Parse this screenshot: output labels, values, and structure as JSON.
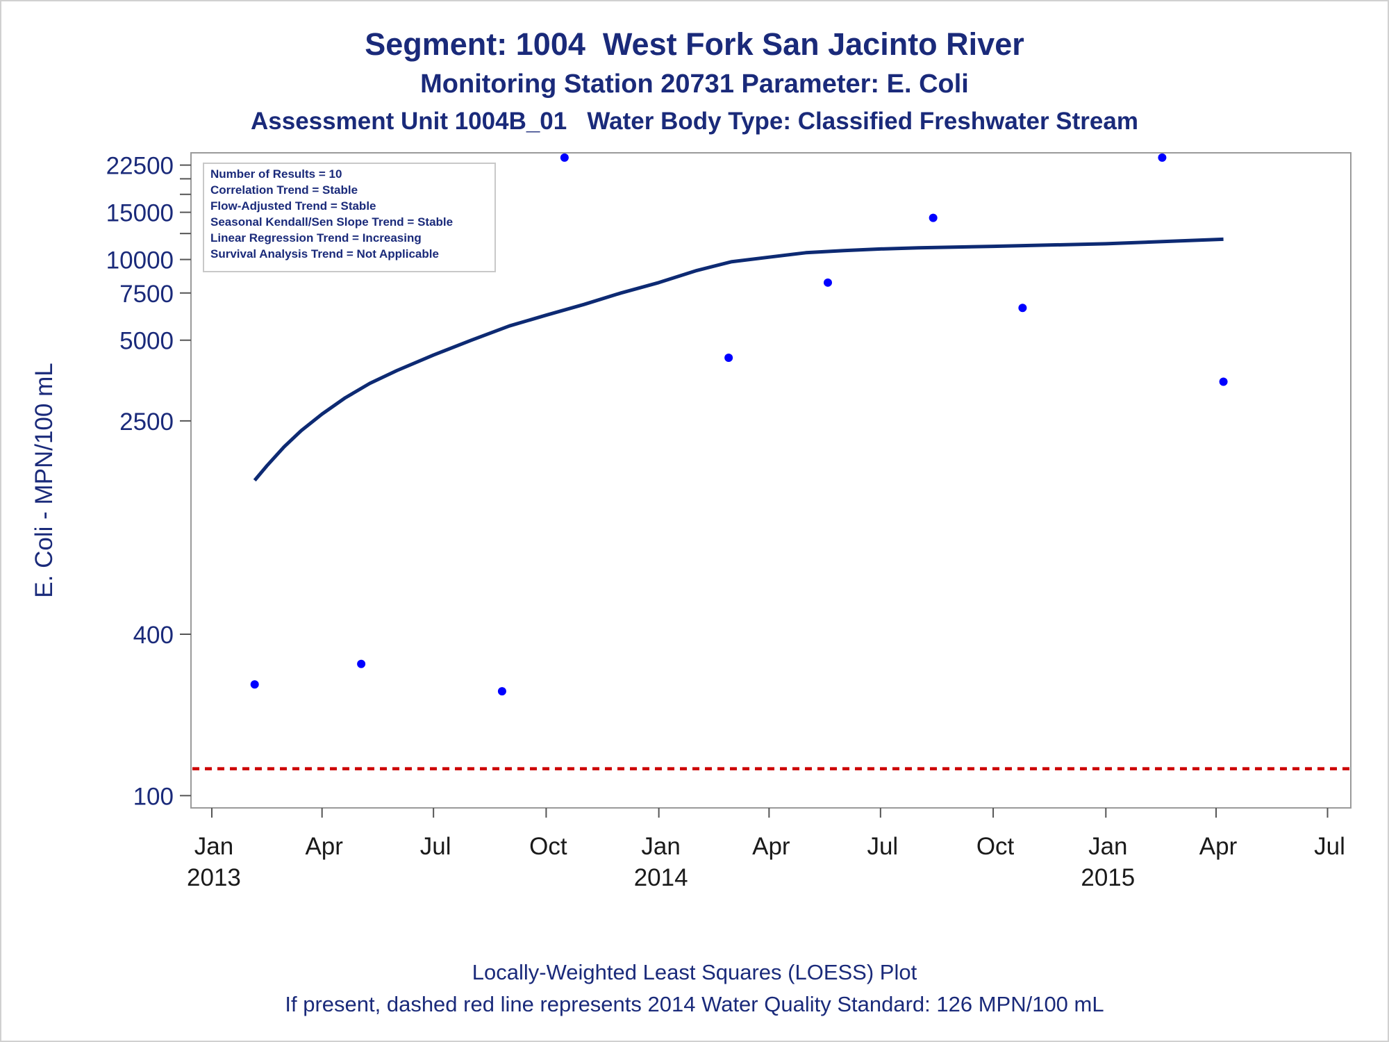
{
  "chart_data": {
    "type": "scatter",
    "title": "Segment: 1004  West Fork San Jacinto River",
    "subtitle": "Monitoring Station 20731 Parameter: E. Coli",
    "subtitle2": "Assessment Unit 1004B_01   Water Body Type: Classified Freshwater Stream",
    "xlabel": "",
    "ylabel": "E. Coli - MPN/100 mL",
    "y_scale": "log",
    "ylim": [
      90,
      25000
    ],
    "xlim": [
      "2012-12-15",
      "2015-07-20"
    ],
    "y_ticks": [
      {
        "value": 100,
        "label": "100"
      },
      {
        "value": 400,
        "label": "400"
      },
      {
        "value": 2500,
        "label": "2500"
      },
      {
        "value": 5000,
        "label": "5000"
      },
      {
        "value": 7500,
        "label": "7500"
      },
      {
        "value": 10000,
        "label": "10000"
      },
      {
        "value": 15000,
        "label": "15000"
      },
      {
        "value": 22500,
        "label": "22500"
      }
    ],
    "y_minor_ticks": [
      12500,
      17500,
      20000
    ],
    "x_ticks": [
      {
        "date": "2013-01-01",
        "label": "Jan",
        "year": "2013"
      },
      {
        "date": "2013-04-01",
        "label": "Apr",
        "year": ""
      },
      {
        "date": "2013-07-01",
        "label": "Jul",
        "year": ""
      },
      {
        "date": "2013-10-01",
        "label": "Oct",
        "year": ""
      },
      {
        "date": "2014-01-01",
        "label": "Jan",
        "year": "2014"
      },
      {
        "date": "2014-04-01",
        "label": "Apr",
        "year": ""
      },
      {
        "date": "2014-07-01",
        "label": "Jul",
        "year": ""
      },
      {
        "date": "2014-10-01",
        "label": "Oct",
        "year": ""
      },
      {
        "date": "2015-01-01",
        "label": "Jan",
        "year": "2015"
      },
      {
        "date": "2015-04-01",
        "label": "Apr",
        "year": ""
      },
      {
        "date": "2015-07-01",
        "label": "Jul",
        "year": ""
      }
    ],
    "points": [
      {
        "date": "2013-02-05",
        "value": 260
      },
      {
        "date": "2013-05-03",
        "value": 310
      },
      {
        "date": "2013-08-26",
        "value": 245
      },
      {
        "date": "2013-10-16",
        "value": 24000
      },
      {
        "date": "2014-02-27",
        "value": 4300
      },
      {
        "date": "2014-05-19",
        "value": 8200
      },
      {
        "date": "2014-08-13",
        "value": 14300
      },
      {
        "date": "2014-10-25",
        "value": 6600
      },
      {
        "date": "2015-02-16",
        "value": 24000
      },
      {
        "date": "2015-04-07",
        "value": 3500
      }
    ],
    "loess_curve": [
      {
        "date": "2013-02-05",
        "value": 1500
      },
      {
        "date": "2013-02-15",
        "value": 1700
      },
      {
        "date": "2013-03-01",
        "value": 2000
      },
      {
        "date": "2013-03-15",
        "value": 2300
      },
      {
        "date": "2013-04-01",
        "value": 2650
      },
      {
        "date": "2013-04-20",
        "value": 3050
      },
      {
        "date": "2013-05-10",
        "value": 3450
      },
      {
        "date": "2013-06-01",
        "value": 3850
      },
      {
        "date": "2013-07-01",
        "value": 4400
      },
      {
        "date": "2013-08-01",
        "value": 5000
      },
      {
        "date": "2013-09-01",
        "value": 5650
      },
      {
        "date": "2013-10-01",
        "value": 6200
      },
      {
        "date": "2013-11-01",
        "value": 6800
      },
      {
        "date": "2013-12-01",
        "value": 7500
      },
      {
        "date": "2014-01-01",
        "value": 8200
      },
      {
        "date": "2014-02-01",
        "value": 9100
      },
      {
        "date": "2014-03-01",
        "value": 9800
      },
      {
        "date": "2014-04-01",
        "value": 10200
      },
      {
        "date": "2014-05-01",
        "value": 10600
      },
      {
        "date": "2014-06-01",
        "value": 10800
      },
      {
        "date": "2014-07-01",
        "value": 10950
      },
      {
        "date": "2014-08-01",
        "value": 11050
      },
      {
        "date": "2014-10-01",
        "value": 11200
      },
      {
        "date": "2015-01-01",
        "value": 11450
      },
      {
        "date": "2015-04-07",
        "value": 11900
      }
    ],
    "reference_line": {
      "value": 126,
      "color": "#cc0000",
      "style": "dashed"
    },
    "point_color": "#0000ff",
    "curve_color": "#0d2a73",
    "text_color": "#1a2a7a",
    "grid": false,
    "legend_placement": "top-left",
    "inset_lines": [
      "Number of Results = 10",
      "Correlation Trend = Stable",
      "Flow-Adjusted Trend = Stable",
      "Seasonal Kendall/Sen Slope Trend = Stable",
      "Linear Regression Trend = Increasing",
      "Survival Analysis Trend = Not Applicable"
    ]
  },
  "footnotes": {
    "line1": "Locally-Weighted Least Squares (LOESS) Plot",
    "line2": "If present, dashed red line represents 2014 Water Quality Standard: 126 MPN/100 mL"
  }
}
